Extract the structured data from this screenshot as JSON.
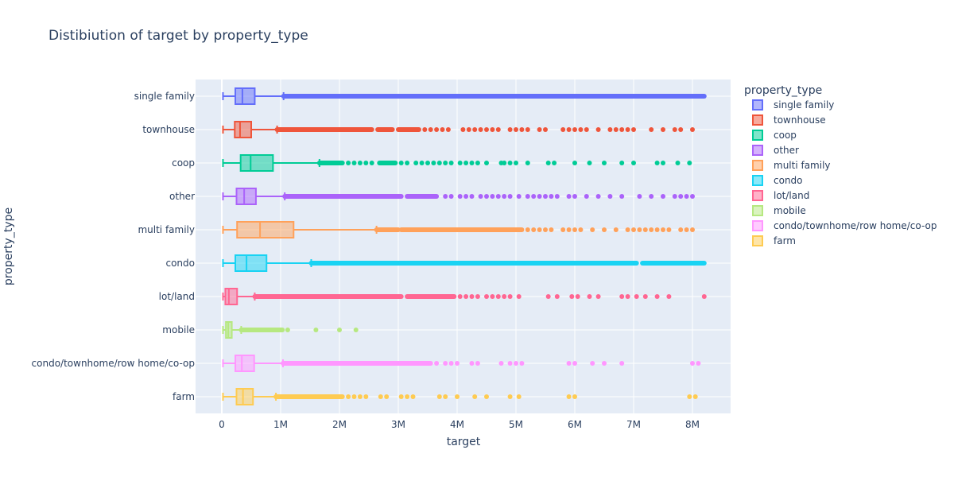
{
  "chart_data": {
    "type": "box",
    "orientation": "horizontal",
    "title": "Distibiution of target by property_type",
    "xlabel": "target",
    "ylabel": "property_type",
    "xlim": [
      -450000,
      8200000
    ],
    "x_ticks": [
      {
        "value": 0,
        "label": "0"
      },
      {
        "value": 1000000,
        "label": "1M"
      },
      {
        "value": 2000000,
        "label": "2M"
      },
      {
        "value": 3000000,
        "label": "3M"
      },
      {
        "value": 4000000,
        "label": "4M"
      },
      {
        "value": 5000000,
        "label": "5M"
      },
      {
        "value": 6000000,
        "label": "6M"
      },
      {
        "value": 7000000,
        "label": "7M"
      },
      {
        "value": 8000000,
        "label": "8M"
      }
    ],
    "grid": true,
    "legend": {
      "title": "property_type",
      "position": "right"
    },
    "series": [
      {
        "name": "single family",
        "color": "#636efa",
        "min": 20000,
        "q1": 230000,
        "median": 350000,
        "q3": 560000,
        "max": 1050000,
        "outlier_segments": [
          [
            1050000,
            8200000
          ]
        ],
        "outliers": []
      },
      {
        "name": "townhouse",
        "color": "#ef553b",
        "min": 20000,
        "q1": 220000,
        "median": 310000,
        "q3": 500000,
        "max": 940000,
        "outlier_segments": [
          [
            940000,
            2550000
          ],
          [
            2650000,
            2900000
          ],
          [
            3000000,
            3350000
          ]
        ],
        "outliers": [
          3450000,
          3550000,
          3650000,
          3750000,
          3850000,
          4100000,
          4200000,
          4300000,
          4400000,
          4500000,
          4600000,
          4700000,
          4900000,
          5000000,
          5100000,
          5200000,
          5400000,
          5500000,
          5800000,
          5900000,
          6000000,
          6100000,
          6200000,
          6400000,
          6600000,
          6700000,
          6800000,
          6900000,
          7000000,
          7300000,
          7500000,
          7700000,
          7800000,
          8000000
        ]
      },
      {
        "name": "coop",
        "color": "#00cc96",
        "min": 20000,
        "q1": 320000,
        "median": 490000,
        "q3": 870000,
        "max": 1660000,
        "outlier_segments": [
          [
            1660000,
            2050000
          ],
          [
            2680000,
            2950000
          ]
        ],
        "outliers": [
          2150000,
          2250000,
          2350000,
          2450000,
          2550000,
          3050000,
          3150000,
          3300000,
          3400000,
          3500000,
          3600000,
          3700000,
          3800000,
          3900000,
          4050000,
          4150000,
          4250000,
          4350000,
          4500000,
          4750000,
          4800000,
          4900000,
          5000000,
          5200000,
          5550000,
          5650000,
          6000000,
          6250000,
          6500000,
          6800000,
          7000000,
          7400000,
          7500000,
          7750000,
          7950000
        ]
      },
      {
        "name": "other",
        "color": "#ab63fa",
        "min": 20000,
        "q1": 250000,
        "median": 380000,
        "q3": 580000,
        "max": 1070000,
        "outlier_segments": [
          [
            1070000,
            3050000
          ],
          [
            3150000,
            3650000
          ]
        ],
        "outliers": [
          3800000,
          3900000,
          4050000,
          4150000,
          4250000,
          4400000,
          4500000,
          4600000,
          4700000,
          4800000,
          4900000,
          5050000,
          5200000,
          5300000,
          5400000,
          5500000,
          5600000,
          5700000,
          5900000,
          6000000,
          6200000,
          6400000,
          6600000,
          6800000,
          7100000,
          7300000,
          7500000,
          7700000,
          7800000,
          7900000,
          8000000
        ]
      },
      {
        "name": "multi family",
        "color": "#ffa15a",
        "min": 20000,
        "q1": 260000,
        "median": 650000,
        "q3": 1220000,
        "max": 2630000,
        "outlier_segments": [
          [
            2630000,
            3000000
          ],
          [
            3050000,
            5100000
          ]
        ],
        "outliers": [
          5200000,
          5300000,
          5400000,
          5500000,
          5600000,
          5800000,
          5900000,
          6000000,
          6100000,
          6300000,
          6500000,
          6700000,
          6900000,
          7000000,
          7100000,
          7200000,
          7300000,
          7400000,
          7500000,
          7600000,
          7800000,
          7900000,
          8000000
        ]
      },
      {
        "name": "condo",
        "color": "#19d3f3",
        "min": 20000,
        "q1": 230000,
        "median": 420000,
        "q3": 760000,
        "max": 1520000,
        "outlier_segments": [
          [
            1520000,
            7050000
          ],
          [
            7150000,
            8200000
          ]
        ],
        "outliers": []
      },
      {
        "name": "lot/land",
        "color": "#ff6692",
        "min": 20000,
        "q1": 60000,
        "median": 120000,
        "q3": 260000,
        "max": 560000,
        "outlier_segments": [
          [
            560000,
            3050000
          ],
          [
            3150000,
            3950000
          ]
        ],
        "outliers": [
          4050000,
          4150000,
          4250000,
          4350000,
          4500000,
          4600000,
          4700000,
          4800000,
          4900000,
          5050000,
          5550000,
          5700000,
          5950000,
          6050000,
          6250000,
          6400000,
          6800000,
          6900000,
          7050000,
          7200000,
          7400000,
          7600000,
          8200000
        ]
      },
      {
        "name": "mobile",
        "color": "#b6e880",
        "min": 20000,
        "q1": 70000,
        "median": 110000,
        "q3": 170000,
        "max": 330000,
        "outlier_segments": [
          [
            330000,
            1030000
          ]
        ],
        "outliers": [
          1120000,
          1600000,
          2000000,
          2280000
        ]
      },
      {
        "name": "condo/townhome/row home/co-op",
        "color": "#ff97ff",
        "min": 20000,
        "q1": 230000,
        "median": 340000,
        "q3": 550000,
        "max": 1040000,
        "outlier_segments": [
          [
            1040000,
            3550000
          ]
        ],
        "outliers": [
          3650000,
          3800000,
          3900000,
          4000000,
          4250000,
          4350000,
          4750000,
          4900000,
          5000000,
          5100000,
          5900000,
          6000000,
          6300000,
          6500000,
          6800000,
          8000000,
          8100000
        ]
      },
      {
        "name": "farm",
        "color": "#fecb52",
        "min": 20000,
        "q1": 250000,
        "median": 360000,
        "q3": 530000,
        "max": 920000,
        "outlier_segments": [
          [
            920000,
            2050000
          ]
        ],
        "outliers": [
          2150000,
          2250000,
          2350000,
          2450000,
          2700000,
          2800000,
          3050000,
          3150000,
          3250000,
          3700000,
          3800000,
          4000000,
          4300000,
          4500000,
          4900000,
          5050000,
          5900000,
          6000000,
          7950000,
          8050000
        ]
      }
    ]
  }
}
